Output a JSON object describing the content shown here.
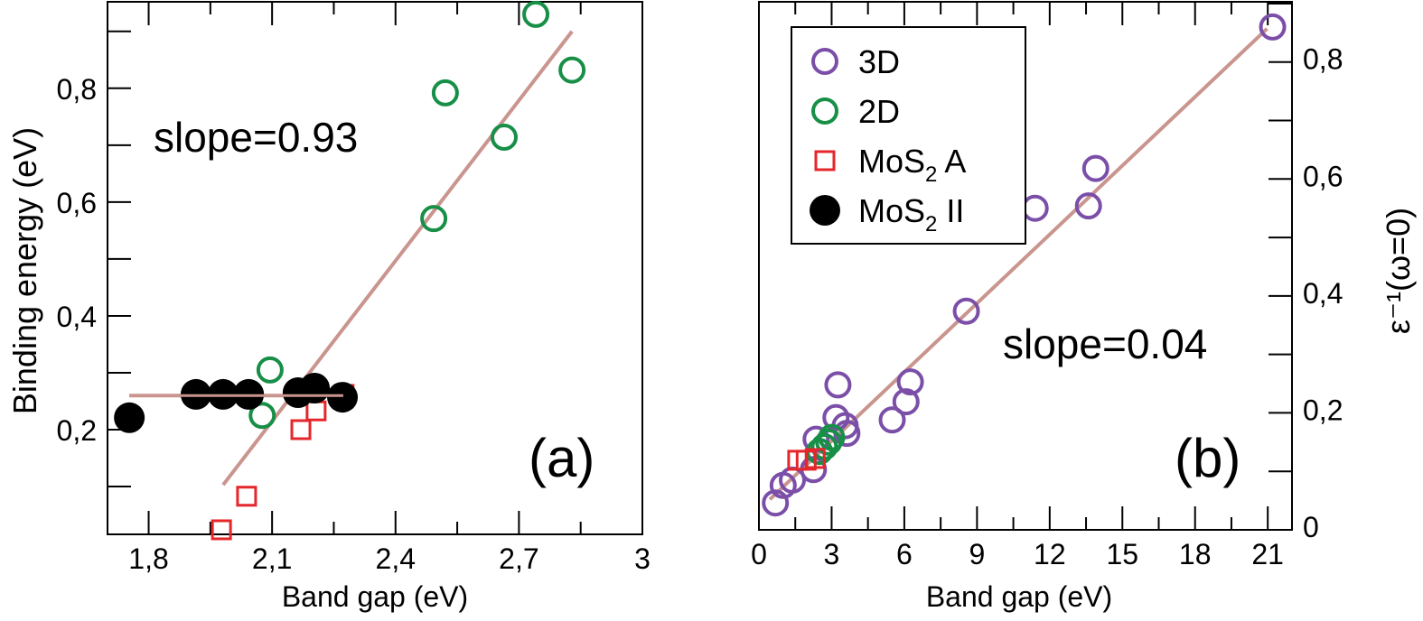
{
  "colors": {
    "purple": "#7b4fa8",
    "green": "#178f47",
    "red": "#e5262b",
    "black": "#000000",
    "fit": "#c9958e"
  },
  "chart_data": [
    {
      "type": "scatter",
      "panel_label": "(a)",
      "annotation": "slope=0.93",
      "xlabel": "Band gap (eV)",
      "ylabel": "Binding energy (eV)",
      "xlim": [
        1.7,
        3.0
      ],
      "ylim": [
        0.016,
        0.952
      ],
      "xticks": [
        1.8,
        2.1,
        2.4,
        2.7,
        3.0
      ],
      "xtick_labels": [
        "1,8",
        "2,1",
        "2,4",
        "2,7",
        "3"
      ],
      "yticks": [
        0.2,
        0.4,
        0.6,
        0.8
      ],
      "ytick_labels": [
        "0,2",
        "0,4",
        "0,6",
        "0,8"
      ],
      "series": [
        {
          "name": "2D",
          "marker": "circle-open",
          "color_key": "green",
          "x": [
            2.095,
            2.076,
            2.493,
            2.521,
            2.664,
            2.741,
            2.829
          ],
          "y": [
            0.305,
            0.225,
            0.571,
            0.792,
            0.714,
            0.93,
            0.832
          ]
        },
        {
          "name": "MoS2 A",
          "marker": "square-open",
          "color_key": "red",
          "x": [
            1.977,
            2.038,
            2.17,
            2.207,
            2.273,
            2.275
          ],
          "y": [
            0.024,
            0.083,
            0.2,
            0.233,
            0.256,
            0.262
          ]
        },
        {
          "name": "MoS2 II",
          "marker": "circle-filled",
          "color_key": "black",
          "x": [
            1.753,
            1.915,
            1.981,
            2.043,
            2.163,
            2.203,
            2.271
          ],
          "y": [
            0.221,
            0.262,
            0.262,
            0.262,
            0.265,
            0.273,
            0.257
          ]
        }
      ],
      "fit_lines": [
        {
          "x": [
            1.753,
            2.273
          ],
          "y": [
            0.26,
            0.26
          ]
        },
        {
          "x": [
            1.981,
            2.829
          ],
          "y": [
            0.103,
            0.9
          ]
        }
      ]
    },
    {
      "type": "scatter",
      "panel_label": "(b)",
      "annotation": "slope=0.04",
      "xlabel": "Band gap (eV)",
      "ylabel": "ε⁻¹(ω=0)",
      "xlim": [
        0,
        22
      ],
      "ylim": [
        0,
        0.903
      ],
      "xticks": [
        0,
        3,
        6,
        9,
        12,
        15,
        18,
        21
      ],
      "xtick_labels": [
        "0",
        "3",
        "6",
        "9",
        "12",
        "15",
        "18",
        "21"
      ],
      "yticks": [
        0,
        0.2,
        0.4,
        0.6,
        0.8
      ],
      "ytick_labels": [
        "0",
        "0,2",
        "0,4",
        "0,6",
        "0,8"
      ],
      "legend": {
        "placement": "top-left",
        "entries": [
          {
            "label": "3D",
            "marker": "circle-open",
            "color_key": "purple"
          },
          {
            "label": "2D",
            "marker": "circle-open",
            "color_key": "green"
          },
          {
            "label": "MoS",
            "sub": "2",
            "suffix": " A",
            "marker": "square-open",
            "color_key": "red"
          },
          {
            "label": "MoS",
            "sub": "2",
            "suffix": " II",
            "marker": "circle-filled",
            "color_key": "black"
          }
        ]
      },
      "series": [
        {
          "name": "3D",
          "marker": "circle-open",
          "color_key": "purple",
          "x": [
            21.2,
            13.9,
            13.6,
            11.4,
            8.56,
            6.25,
            6.07,
            5.5,
            3.26,
            3.18,
            3.56,
            3.63,
            2.36,
            2.25,
            1.38,
            1.0,
            0.68
          ],
          "y": [
            0.86,
            0.618,
            0.554,
            0.55,
            0.374,
            0.253,
            0.219,
            0.188,
            0.248,
            0.192,
            0.178,
            0.165,
            0.155,
            0.103,
            0.085,
            0.076,
            0.046
          ]
        },
        {
          "name": "2D",
          "marker": "circle-open",
          "color_key": "green",
          "x": [
            2.5,
            2.7,
            2.88,
            3.0
          ],
          "y": [
            0.134,
            0.142,
            0.15,
            0.158
          ]
        },
        {
          "name": "MoS2 A",
          "marker": "square-open",
          "color_key": "red",
          "x": [
            1.6,
            1.95,
            2.32
          ],
          "y": [
            0.119,
            0.119,
            0.122
          ]
        }
      ],
      "fit_lines": [
        {
          "x": [
            0.45,
            20.97
          ],
          "y": [
            0.052,
            0.857
          ]
        }
      ]
    }
  ]
}
